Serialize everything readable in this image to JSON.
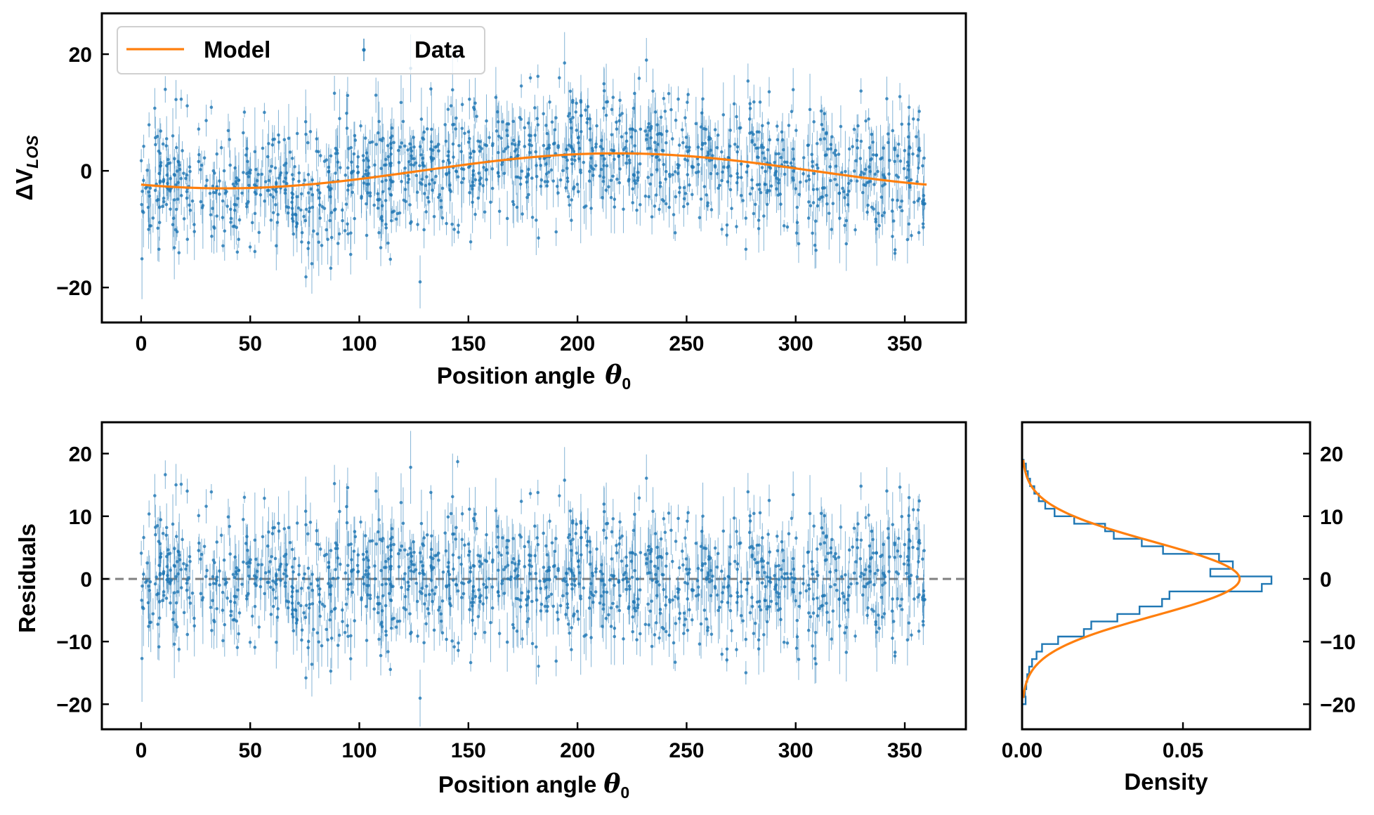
{
  "colors": {
    "data": "#1f77b4",
    "model": "#ff7f0e",
    "zero_line": "#808080",
    "axes": "#000000"
  },
  "chart_data": [
    {
      "id": "top",
      "type": "scatter",
      "x_range": [
        0,
        360
      ],
      "n_points": 1400,
      "y_noise_sd": 5.6,
      "xlabel": "Position angle",
      "xlabel_symbol": "θ",
      "xlabel_subscript": "0",
      "ylabel": "ΔV",
      "ylabel_subscript": "LOS",
      "xlim": [
        -18,
        378
      ],
      "ylim": [
        -26,
        27
      ],
      "xticks": [
        0,
        50,
        100,
        150,
        200,
        250,
        300,
        350
      ],
      "yticks": [
        -20,
        0,
        20
      ],
      "legend_position": "upper-left",
      "legend": [
        {
          "label": "Model",
          "kind": "line"
        },
        {
          "label": "Data",
          "kind": "errorbar"
        }
      ],
      "series": [
        {
          "name": "Data",
          "kind": "errorbar-scatter"
        },
        {
          "name": "Model",
          "kind": "line",
          "function": "A*cos(theta - phase)",
          "amplitude": 3.0,
          "phase_deg": 218
        }
      ]
    },
    {
      "id": "residuals",
      "type": "scatter",
      "x_range": [
        0,
        360
      ],
      "n_points": 1400,
      "y_noise_sd": 5.6,
      "xlabel": "Position angle",
      "xlabel_symbol": "θ",
      "xlabel_subscript": "0",
      "ylabel": "Residuals",
      "xlim": [
        -18,
        378
      ],
      "ylim": [
        -24,
        25
      ],
      "xticks": [
        0,
        50,
        100,
        150,
        200,
        250,
        300,
        350
      ],
      "yticks": [
        -20,
        -10,
        0,
        10,
        20
      ],
      "reference_line": {
        "y": 0,
        "style": "dashed"
      }
    },
    {
      "id": "density",
      "type": "histogram",
      "orientation": "horizontal",
      "xlabel": "Density",
      "xlim": [
        0,
        0.0895
      ],
      "ylim": [
        -24,
        25
      ],
      "xticks": [
        0.0,
        0.05
      ],
      "xtick_labels": [
        "0.00",
        "0.05"
      ],
      "yticks": [
        -20,
        -10,
        0,
        10,
        20
      ],
      "ytick_side": "right",
      "bins": [
        {
          "lo": -20.0,
          "hi": -18.8,
          "density": 0.0011
        },
        {
          "lo": -18.8,
          "hi": -17.6,
          "density": 0.0009
        },
        {
          "lo": -17.6,
          "hi": -16.4,
          "density": 0.0013
        },
        {
          "lo": -16.4,
          "hi": -15.2,
          "density": 0.0016
        },
        {
          "lo": -15.2,
          "hi": -14.0,
          "density": 0.0022
        },
        {
          "lo": -14.0,
          "hi": -12.8,
          "density": 0.0031
        },
        {
          "lo": -12.8,
          "hi": -11.6,
          "density": 0.0045
        },
        {
          "lo": -11.6,
          "hi": -10.4,
          "density": 0.0062
        },
        {
          "lo": -10.4,
          "hi": -9.2,
          "density": 0.0112
        },
        {
          "lo": -9.2,
          "hi": -8.0,
          "density": 0.0192
        },
        {
          "lo": -8.0,
          "hi": -6.8,
          "density": 0.0215
        },
        {
          "lo": -6.8,
          "hi": -5.6,
          "density": 0.0296
        },
        {
          "lo": -5.6,
          "hi": -4.4,
          "density": 0.0365
        },
        {
          "lo": -4.4,
          "hi": -3.2,
          "density": 0.0435
        },
        {
          "lo": -3.2,
          "hi": -2.0,
          "density": 0.0458
        },
        {
          "lo": -2.0,
          "hi": -0.8,
          "density": 0.0745
        },
        {
          "lo": -0.8,
          "hi": 0.4,
          "density": 0.0775
        },
        {
          "lo": 0.4,
          "hi": 1.6,
          "density": 0.0585
        },
        {
          "lo": 1.6,
          "hi": 2.8,
          "density": 0.0655
        },
        {
          "lo": 2.8,
          "hi": 4.0,
          "density": 0.0612
        },
        {
          "lo": 4.0,
          "hi": 5.2,
          "density": 0.0438
        },
        {
          "lo": 5.2,
          "hi": 6.4,
          "density": 0.0372
        },
        {
          "lo": 6.4,
          "hi": 7.6,
          "density": 0.0285
        },
        {
          "lo": 7.6,
          "hi": 8.8,
          "density": 0.0258
        },
        {
          "lo": 8.8,
          "hi": 10.0,
          "density": 0.0162
        },
        {
          "lo": 10.0,
          "hi": 11.2,
          "density": 0.0101
        },
        {
          "lo": 11.2,
          "hi": 12.4,
          "density": 0.0072
        },
        {
          "lo": 12.4,
          "hi": 13.6,
          "density": 0.0052
        },
        {
          "lo": 13.6,
          "hi": 14.8,
          "density": 0.0038
        },
        {
          "lo": 14.8,
          "hi": 16.0,
          "density": 0.0025
        },
        {
          "lo": 16.0,
          "hi": 17.2,
          "density": 0.0018
        },
        {
          "lo": 17.2,
          "hi": 18.4,
          "density": 0.0012
        },
        {
          "lo": 18.4,
          "hi": 19.0,
          "density": 0.0005
        }
      ],
      "fit_curve": {
        "kind": "gaussian",
        "mean": 0.0,
        "sd": 5.9
      }
    }
  ]
}
